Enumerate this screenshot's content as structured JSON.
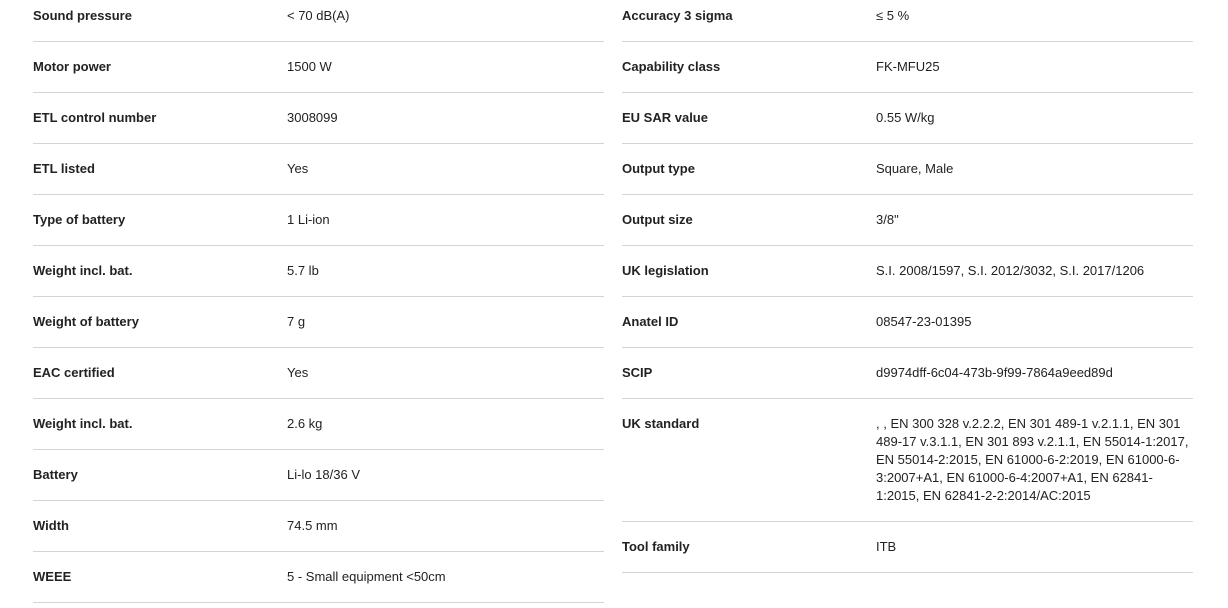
{
  "left": [
    {
      "label": "Sound pressure",
      "value": "< 70 dB(A)"
    },
    {
      "label": "Motor power",
      "value": "1500 W"
    },
    {
      "label": "ETL control number",
      "value": "3008099"
    },
    {
      "label": "ETL listed",
      "value": "Yes"
    },
    {
      "label": "Type of battery",
      "value": "1 Li-ion"
    },
    {
      "label": "Weight incl. bat.",
      "value": "5.7 lb"
    },
    {
      "label": "Weight of battery",
      "value": "7 g"
    },
    {
      "label": "EAC certified",
      "value": "Yes"
    },
    {
      "label": "Weight incl. bat.",
      "value": "2.6 kg"
    },
    {
      "label": "Battery",
      "value": "Li-lo 18/36 V"
    },
    {
      "label": "Width",
      "value": "74.5 mm"
    },
    {
      "label": "WEEE",
      "value": "5 - Small equipment <50cm"
    }
  ],
  "right": [
    {
      "label": "Accuracy 3 sigma",
      "value": "≤ 5 %"
    },
    {
      "label": "Capability class",
      "value": "FK-MFU25"
    },
    {
      "label": "EU SAR value",
      "value": "0.55 W/kg"
    },
    {
      "label": "Output type",
      "value": "Square, Male"
    },
    {
      "label": "Output size",
      "value": "3/8\""
    },
    {
      "label": "UK legislation",
      "value": "S.I. 2008/1597, S.I. 2012/3032, S.I. 2017/1206"
    },
    {
      "label": "Anatel ID",
      "value": "08547-23-01395"
    },
    {
      "label": "SCIP",
      "value": "d9974dff-6c04-473b-9f99-7864a9eed89d"
    },
    {
      "label": "UK standard",
      "value": ", , EN 300 328 v.2.2.2, EN 301 489-1 v.2.1.1, EN 301 489-17 v.3.1.1, EN 301 893 v.2.1.1, EN 55014-1:2017, EN 55014-2:2015, EN 61000-6-2:2019, EN 61000-6-3:2007+A1, EN 61000-6-4:2007+A1, EN 62841-1:2015, EN 62841-2-2:2014/AC:2015"
    },
    {
      "label": "Tool family",
      "value": "ITB"
    }
  ]
}
